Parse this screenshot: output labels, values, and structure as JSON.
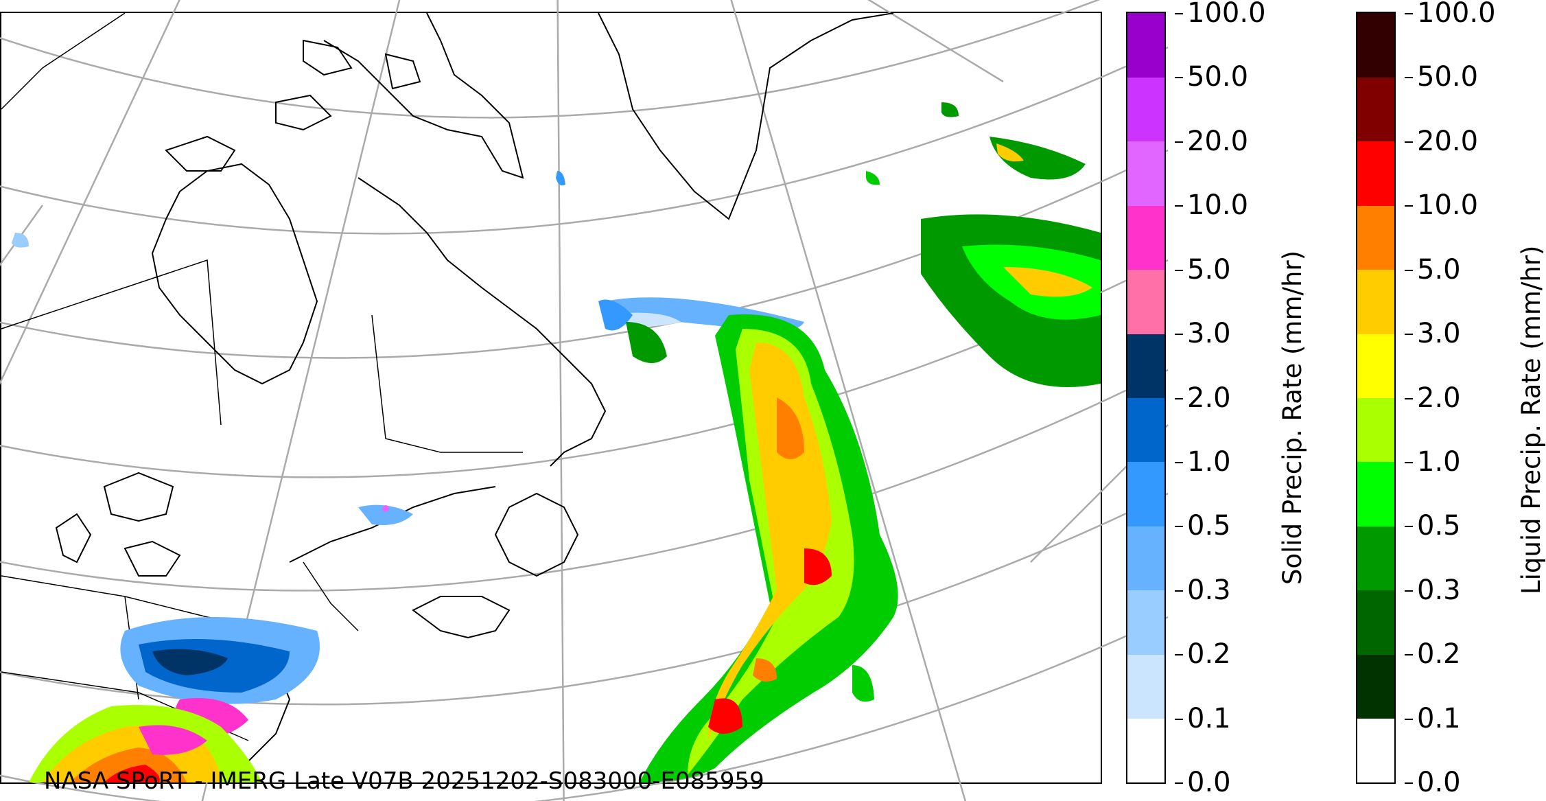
{
  "map": {
    "caption": "NASA SPoRT - IMERG Late V07B 20251202-S083000-E085959",
    "region": "North Atlantic / Eastern Canada, Greenland",
    "colors": {
      "graticule": "#aaaaaa",
      "coastline": "#000000",
      "border": "#000000"
    }
  },
  "colorbars": [
    {
      "id": "solid",
      "title": "Solid Precip. Rate (mm/hr)",
      "ticks": [
        "0.0",
        "0.1",
        "0.2",
        "0.3",
        "0.5",
        "1.0",
        "2.0",
        "3.0",
        "5.0",
        "10.0",
        "20.0",
        "50.0",
        "100.0"
      ],
      "colors": [
        "#ffffff",
        "#cce5ff",
        "#99ccff",
        "#66b2ff",
        "#3399ff",
        "#0066cc",
        "#003366",
        "#ff6fa8",
        "#ff33cc",
        "#e066ff",
        "#cc33ff",
        "#9900cc"
      ]
    },
    {
      "id": "liquid",
      "title": "Liquid Precip. Rate (mm/hr)",
      "ticks": [
        "0.0",
        "0.1",
        "0.2",
        "0.3",
        "0.5",
        "1.0",
        "2.0",
        "3.0",
        "5.0",
        "10.0",
        "20.0",
        "50.0",
        "100.0"
      ],
      "colors": [
        "#ffffff",
        "#003300",
        "#006600",
        "#009900",
        "#00ff00",
        "#aaff00",
        "#ffff00",
        "#ffcc00",
        "#ff8000",
        "#ff0000",
        "#800000",
        "#330000"
      ]
    }
  ]
}
